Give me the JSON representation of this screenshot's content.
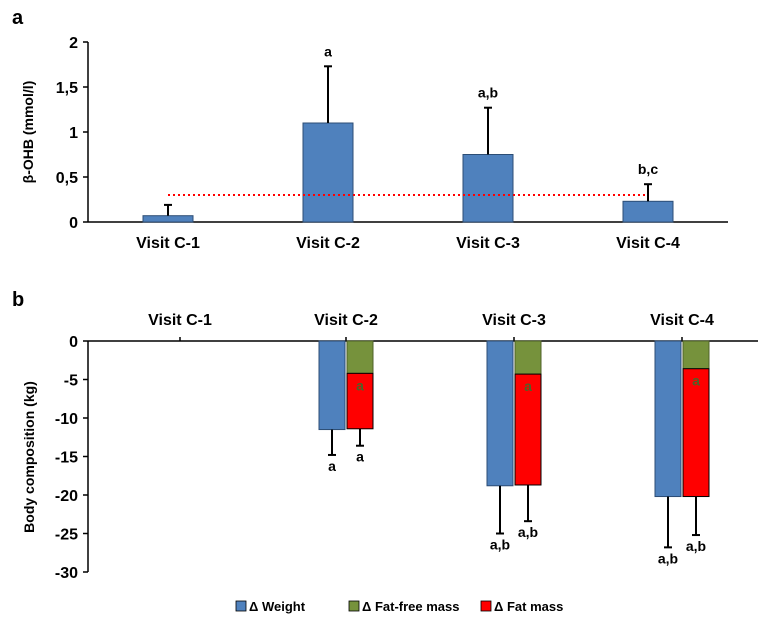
{
  "colors": {
    "bar_blue": "#4f81bd",
    "bar_green": "#76923c",
    "bar_red": "#ff0000",
    "error_bar": "#000000",
    "threshold_line": "#ff0000",
    "axis": "#000000"
  },
  "chart_data": [
    {
      "panel": "a",
      "type": "bar",
      "ylabel": "β-OHB (mmol/l)",
      "ylim": [
        0,
        2
      ],
      "yticks": [
        "0",
        "0,5",
        "1",
        "1,5",
        "2"
      ],
      "categories": [
        "Visit C-1",
        "Visit C-2",
        "Visit C-3",
        "Visit C-4"
      ],
      "series": [
        {
          "values": [
            0.07,
            1.1,
            0.75,
            0.23
          ],
          "errors": [
            0.12,
            0.63,
            0.52,
            0.19
          ],
          "color": "#4f81bd"
        }
      ],
      "reference_line": {
        "y": 0.3,
        "style": "dotted",
        "color": "#ff0000"
      },
      "annotations": [
        "",
        "a",
        "a,b",
        "b,c"
      ],
      "grid": false
    },
    {
      "panel": "b",
      "type": "bar",
      "ylabel": "Body composition (kg)",
      "ylim": [
        -30,
        0
      ],
      "yticks": [
        "0",
        "-5",
        "-10",
        "-15",
        "-20",
        "-25",
        "-30"
      ],
      "categories": [
        "Visit C-1",
        "Visit C-2",
        "Visit C-3",
        "Visit C-4"
      ],
      "series": [
        {
          "name": "Δ Weight",
          "color": "#4f81bd",
          "values": [
            0,
            -11.5,
            -18.8,
            -20.2
          ],
          "errors": [
            0,
            3.3,
            6.2,
            6.6
          ],
          "annotations": [
            "",
            "a",
            "a,b",
            "a,b"
          ]
        },
        {
          "name": "Δ Fat-free mass",
          "color": "#76923c",
          "values": [
            0,
            -4.2,
            -4.3,
            -3.6
          ],
          "annotations": [
            "",
            "a",
            "a",
            "a"
          ]
        },
        {
          "name": "Δ Fat mass",
          "color": "#ff0000",
          "values": [
            0,
            -7.2,
            -14.4,
            -16.6
          ],
          "stacked_on": "Δ Fat-free mass",
          "errors": [
            0,
            2.2,
            4.7,
            5.0
          ],
          "annotations": [
            "",
            "a",
            "a,b",
            "a,b"
          ]
        }
      ],
      "legend": {
        "position": "bottom"
      },
      "grid": false
    }
  ],
  "panel_labels": [
    "a",
    "b"
  ]
}
